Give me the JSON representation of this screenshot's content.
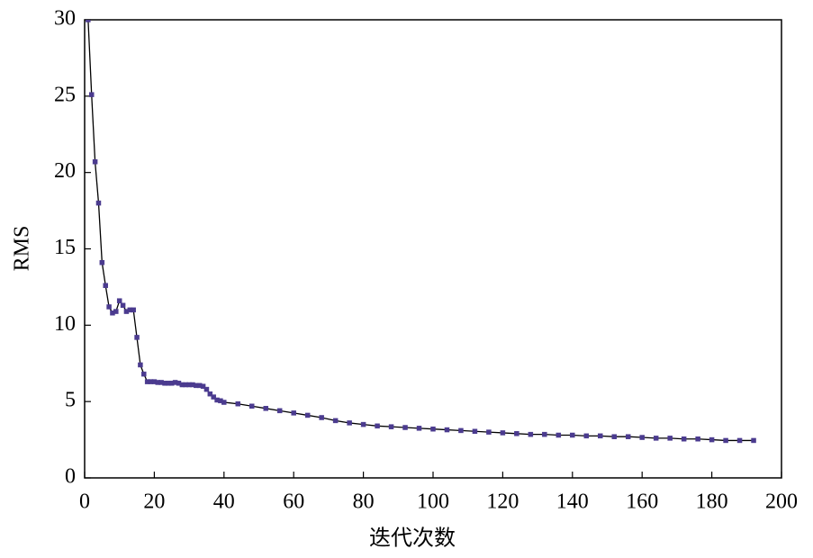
{
  "chart_data": {
    "type": "line",
    "x_label": "迭代次数",
    "y_label": "RMS",
    "x": [
      1,
      2,
      3,
      4,
      5,
      6,
      7,
      8,
      9,
      10,
      11,
      12,
      13,
      14,
      15,
      16,
      17,
      18,
      19,
      20,
      21,
      22,
      23,
      24,
      25,
      26,
      27,
      28,
      29,
      30,
      31,
      32,
      33,
      34,
      35,
      36,
      37,
      38,
      39,
      40,
      44,
      48,
      52,
      56,
      60,
      64,
      68,
      72,
      76,
      80,
      84,
      88,
      92,
      96,
      100,
      104,
      108,
      112,
      116,
      120,
      124,
      128,
      132,
      136,
      140,
      144,
      148,
      152,
      156,
      160,
      164,
      168,
      172,
      176,
      180,
      184,
      188,
      192
    ],
    "values": [
      30,
      25.1,
      20.7,
      18.0,
      14.1,
      12.6,
      11.2,
      10.8,
      10.9,
      11.6,
      11.3,
      10.9,
      11.0,
      11.0,
      9.2,
      7.4,
      6.8,
      6.3,
      6.3,
      6.3,
      6.25,
      6.25,
      6.2,
      6.2,
      6.2,
      6.25,
      6.2,
      6.1,
      6.1,
      6.1,
      6.1,
      6.05,
      6.05,
      6.0,
      5.8,
      5.5,
      5.3,
      5.1,
      5.05,
      4.95,
      4.85,
      4.7,
      4.55,
      4.4,
      4.25,
      4.1,
      3.95,
      3.75,
      3.6,
      3.5,
      3.4,
      3.35,
      3.3,
      3.25,
      3.2,
      3.15,
      3.1,
      3.05,
      3.0,
      2.95,
      2.9,
      2.85,
      2.85,
      2.8,
      2.8,
      2.75,
      2.75,
      2.7,
      2.7,
      2.65,
      2.6,
      2.6,
      2.55,
      2.55,
      2.5,
      2.45,
      2.45,
      2.45
    ],
    "color": "#4b3b8f",
    "line_color": "#000000",
    "xlim": [
      0,
      200
    ],
    "xticks": [
      0,
      20,
      40,
      60,
      80,
      100,
      120,
      140,
      160,
      180,
      200
    ],
    "ylim": [
      0,
      30
    ],
    "yticks": [
      0,
      5,
      10,
      15,
      20,
      25,
      30
    ]
  }
}
